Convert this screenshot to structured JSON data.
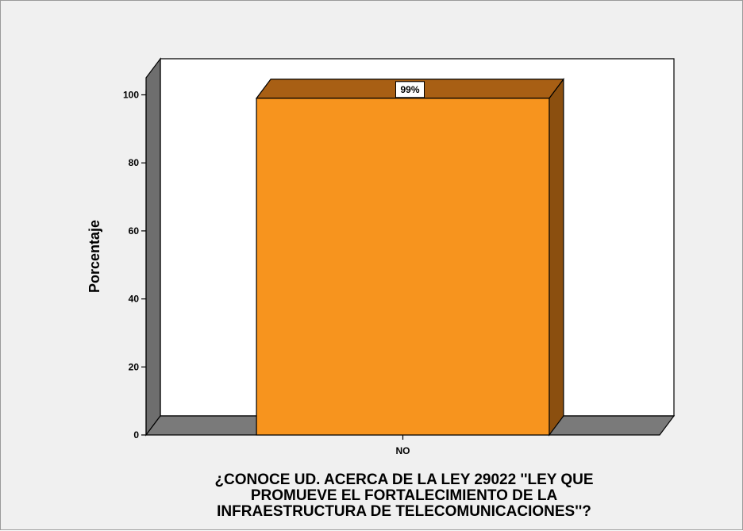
{
  "chart_data": {
    "type": "bar",
    "title": "",
    "xlabel": "¿CONOCE UD. ACERCA DE LA LEY 29022 ''LEY QUE\nPROMUEVE EL FORTALECIMIENTO DE LA\nINFRAESTRUCTURA DE TELECOMUNICACIONES''?",
    "ylabel": "Porcentaje",
    "categories": [
      "NO"
    ],
    "values": [
      99
    ],
    "data_labels": [
      "99%"
    ],
    "ylim": [
      0,
      100
    ],
    "yticks": [
      0,
      20,
      40,
      60,
      80,
      100
    ],
    "three_d": true,
    "grid": false,
    "colors": {
      "bar_front": "#f7941e",
      "bar_top": "#a85f14",
      "bar_side": "#8b4f0f",
      "wall_left": "#6e6e6e",
      "floor": "#7a7a7a",
      "plot_bg": "#ffffff",
      "frame_bg": "#f0f0f0"
    }
  }
}
